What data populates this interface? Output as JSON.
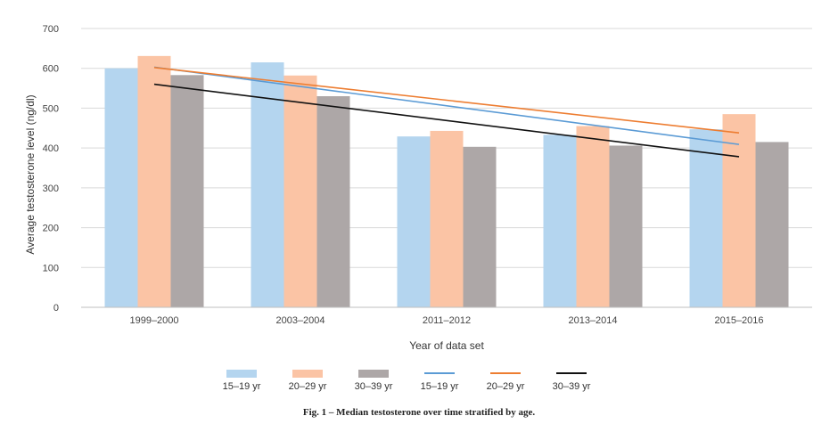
{
  "chart_data": {
    "type": "bar",
    "categories": [
      "1999–2000",
      "2003–2004",
      "2011–2012",
      "2013–2014",
      "2015–2016"
    ],
    "series": [
      {
        "name": "15–19 yr",
        "color": "#b4d5ef",
        "values": [
          600,
          615,
          429,
          433,
          447
        ]
      },
      {
        "name": "20–29 yr",
        "color": "#fbc4a5",
        "values": [
          631,
          582,
          443,
          455,
          485
        ]
      },
      {
        "name": "30–39 yr",
        "color": "#ada7a7",
        "values": [
          583,
          530,
          403,
          406,
          415
        ]
      }
    ],
    "trendlines": [
      {
        "name": "15–19 yr",
        "color": "#5b9bd5",
        "start": 603,
        "end": 409
      },
      {
        "name": "20–29 yr",
        "color": "#ed7d31",
        "start": 602,
        "end": 438
      },
      {
        "name": "30–39 yr",
        "color": "#111111",
        "start": 560,
        "end": 378
      }
    ],
    "xlabel": "Year of data set",
    "ylabel": "Average testosterone level (ng/dl)",
    "ylim": [
      0,
      700
    ],
    "yticks": [
      "0",
      "100",
      "200",
      "300",
      "400",
      "500",
      "600",
      "700"
    ],
    "grid": true,
    "legend_position": "bottom",
    "caption": "Fig. 1 – Median testosterone over time stratified by age."
  }
}
